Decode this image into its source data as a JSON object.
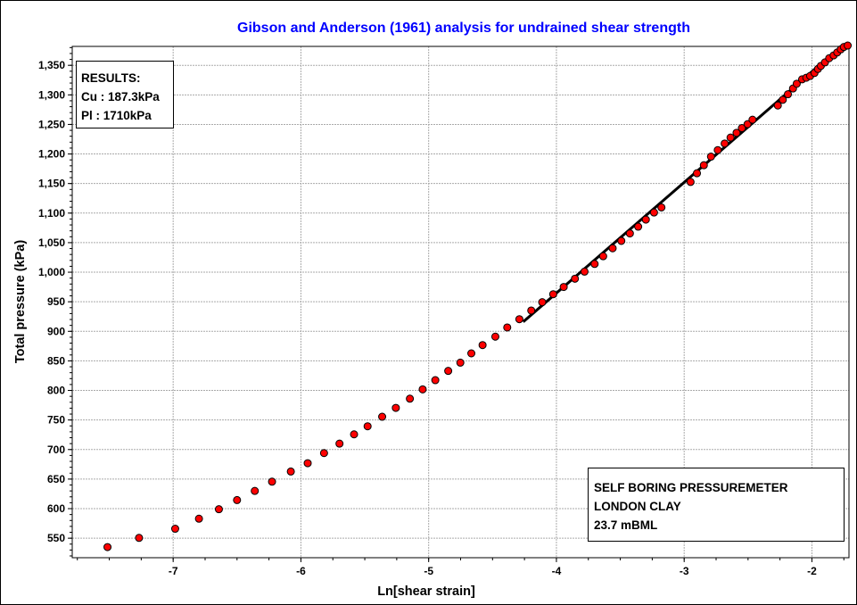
{
  "chart_data": {
    "type": "scatter",
    "title": "Gibson and Anderson (1961) analysis for undrained shear strength",
    "xlabel": "Ln[shear strain]",
    "ylabel": "Total pressure (kPa)",
    "xlim": [
      -7.79,
      -1.71
    ],
    "ylim": [
      517,
      1382
    ],
    "x_ticks": [
      -7,
      -6,
      -5,
      -4,
      -3,
      -2
    ],
    "y_ticks": [
      550,
      600,
      650,
      700,
      750,
      800,
      850,
      900,
      950,
      1000,
      1050,
      1100,
      1150,
      1200,
      1250,
      1300,
      1350
    ],
    "y_tick_labels": [
      "550",
      "600",
      "650",
      "700",
      "750",
      "800",
      "850",
      "900",
      "950",
      "1,000",
      "1,050",
      "1,100",
      "1,150",
      "1,200",
      "1,250",
      "1,300",
      "1,350"
    ],
    "grid": true,
    "title_color": "#0000ff",
    "marker_color": "#ff0000",
    "points": [
      [
        -7.514,
        535
      ],
      [
        -7.267,
        550.5
      ],
      [
        -6.984,
        566
      ],
      [
        -6.798,
        583
      ],
      [
        -6.642,
        599
      ],
      [
        -6.5,
        614.5
      ],
      [
        -6.361,
        630
      ],
      [
        -6.226,
        645.6
      ],
      [
        -6.079,
        662.8
      ],
      [
        -5.947,
        676.9
      ],
      [
        -5.819,
        694
      ],
      [
        -5.698,
        710
      ],
      [
        -5.584,
        725.7
      ],
      [
        -5.478,
        739.3
      ],
      [
        -5.364,
        755.5
      ],
      [
        -5.257,
        770.5
      ],
      [
        -5.147,
        786
      ],
      [
        -5.047,
        801.8
      ],
      [
        -4.948,
        817.4
      ],
      [
        -4.847,
        833
      ],
      [
        -4.752,
        847
      ],
      [
        -4.666,
        862.7
      ],
      [
        -4.578,
        876.7
      ],
      [
        -4.478,
        891
      ],
      [
        -4.385,
        906.5
      ],
      [
        -4.29,
        920.5
      ],
      [
        -4.197,
        935.2
      ],
      [
        -4.111,
        949.3
      ],
      [
        -4.025,
        962.8
      ],
      [
        -3.943,
        975
      ],
      [
        -3.855,
        989
      ],
      [
        -3.78,
        1001
      ],
      [
        -3.701,
        1014
      ],
      [
        -3.634,
        1027
      ],
      [
        -3.56,
        1040.5
      ],
      [
        -3.492,
        1053
      ],
      [
        -3.425,
        1065.6
      ],
      [
        -3.36,
        1077
      ],
      [
        -3.3,
        1089
      ],
      [
        -3.236,
        1101
      ],
      [
        -3.178,
        1109.6
      ],
      [
        -2.95,
        1152.7
      ],
      [
        -2.9,
        1167.4
      ],
      [
        -2.846,
        1181
      ],
      [
        -2.79,
        1195.5
      ],
      [
        -2.737,
        1206.6
      ],
      [
        -2.683,
        1217.7
      ],
      [
        -2.637,
        1227.8
      ],
      [
        -2.59,
        1235.8
      ],
      [
        -2.548,
        1243.8
      ],
      [
        -2.504,
        1250.4
      ],
      [
        -2.465,
        1258
      ],
      [
        -2.267,
        1282
      ],
      [
        -2.228,
        1291.7
      ],
      [
        -2.188,
        1301
      ],
      [
        -2.148,
        1310.8
      ],
      [
        -2.119,
        1318.8
      ],
      [
        -2.077,
        1326.3
      ],
      [
        -2.044,
        1329
      ],
      [
        -2.014,
        1332
      ],
      [
        -1.98,
        1337
      ],
      [
        -1.953,
        1343.8
      ],
      [
        -1.93,
        1349
      ],
      [
        -1.898,
        1355
      ],
      [
        -1.865,
        1362
      ],
      [
        -1.83,
        1366.8
      ],
      [
        -1.802,
        1371.8
      ],
      [
        -1.774,
        1377
      ],
      [
        -1.75,
        1381
      ],
      [
        -1.72,
        1383.5
      ]
    ],
    "fit_line": [
      [
        -4.26,
        916
      ],
      [
        -1.96,
        1346.8
      ]
    ]
  },
  "results": {
    "heading": "RESULTS:",
    "cu": "Cu : 187.3kPa",
    "pl": "Pl : 1710kPa"
  },
  "info": {
    "line1": "SELF BORING PRESSUREMETER",
    "line2": "LONDON CLAY",
    "line3": "23.7 mBML"
  }
}
